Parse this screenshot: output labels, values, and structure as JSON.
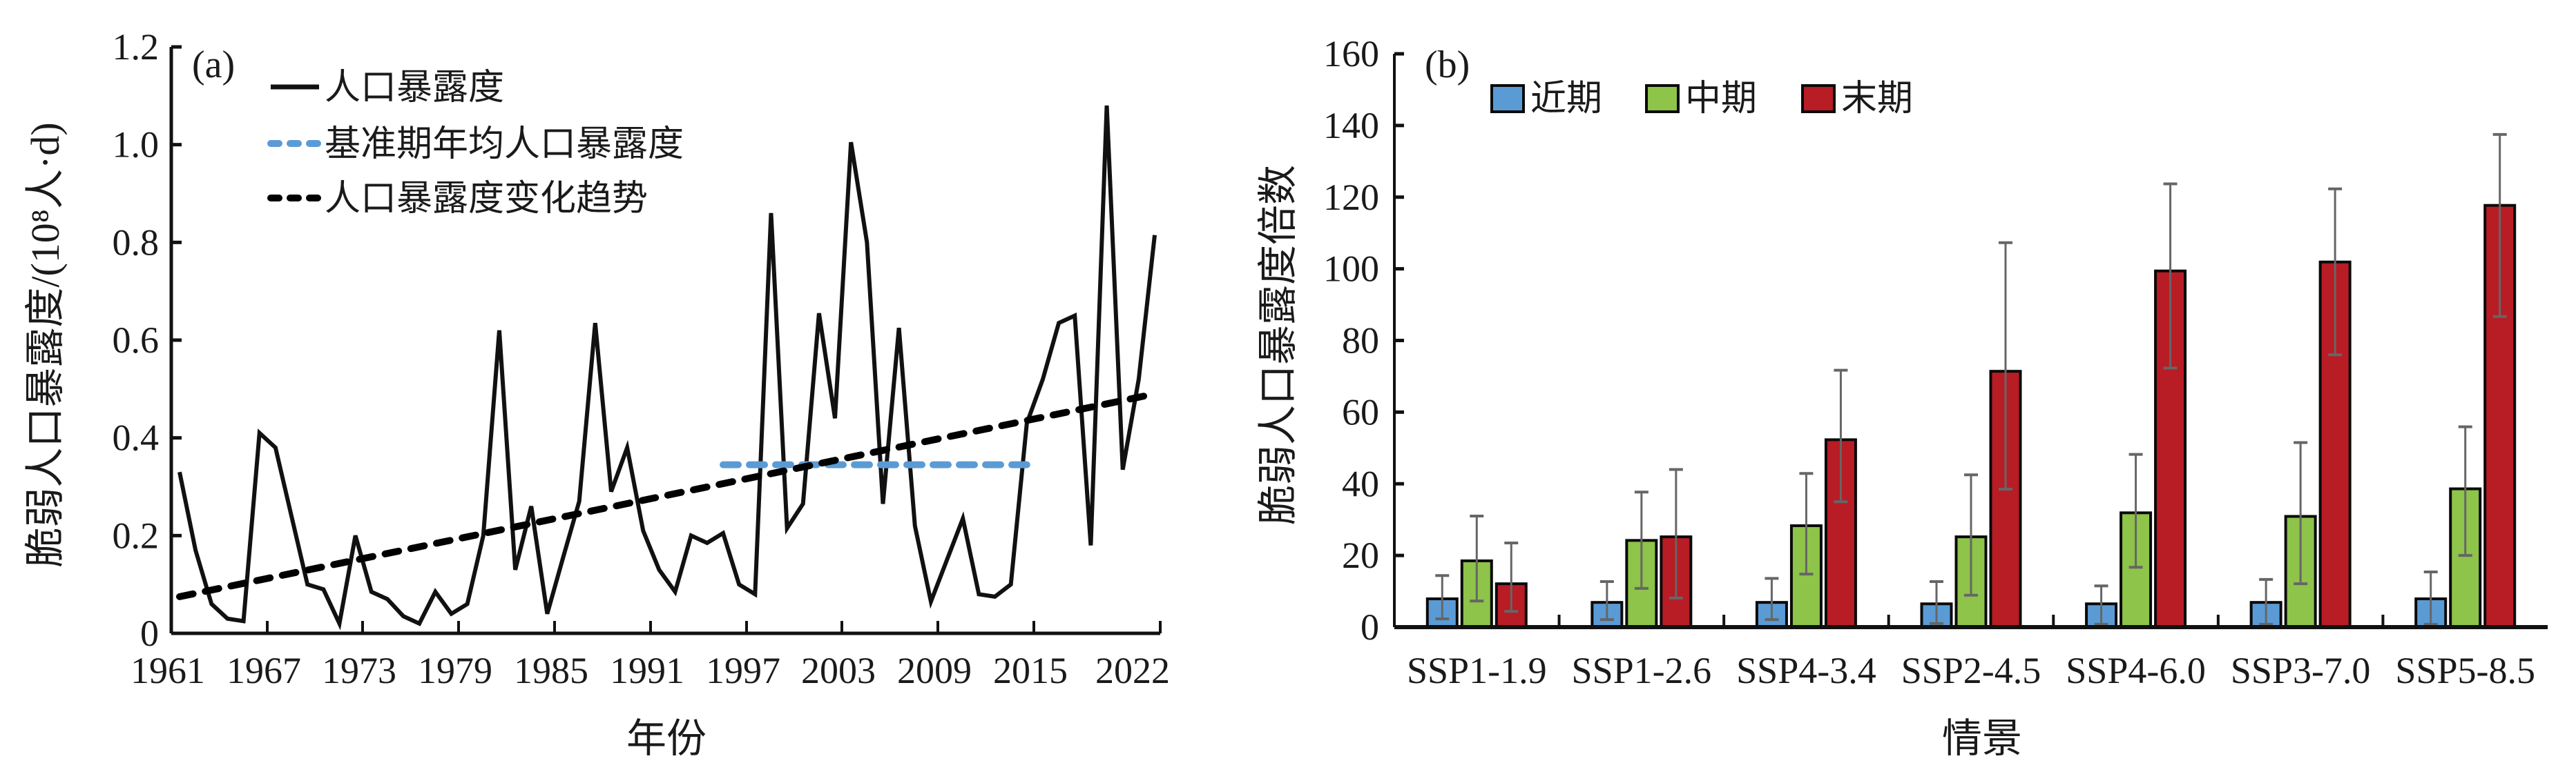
{
  "chart_data": [
    {
      "panel": "(a)",
      "type": "line",
      "title": "",
      "xlabel": "年份",
      "ylabel": "脆弱人口暴露度/(10⁸人·d)",
      "xlim": [
        1961,
        2022
      ],
      "ylim": [
        0,
        1.2
      ],
      "x_ticks": [
        "1961",
        "1967",
        "1973",
        "1979",
        "1985",
        "1991",
        "1997",
        "2003",
        "2009",
        "2015",
        "2022"
      ],
      "y_ticks": [
        "0",
        "0.2",
        "0.4",
        "0.6",
        "0.8",
        "1.0",
        "1.2"
      ],
      "legend_position": "top-left",
      "grid": false,
      "series": [
        {
          "name": "人口暴露度",
          "style": "solid",
          "color": "#111111",
          "x": [
            1961,
            1962,
            1963,
            1964,
            1965,
            1966,
            1967,
            1968,
            1969,
            1970,
            1971,
            1972,
            1973,
            1974,
            1975,
            1976,
            1977,
            1978,
            1979,
            1980,
            1981,
            1982,
            1983,
            1984,
            1985,
            1986,
            1987,
            1988,
            1989,
            1990,
            1991,
            1992,
            1993,
            1994,
            1995,
            1996,
            1997,
            1998,
            1999,
            2000,
            2001,
            2002,
            2003,
            2004,
            2005,
            2006,
            2007,
            2008,
            2009,
            2010,
            2011,
            2012,
            2013,
            2014,
            2015,
            2016,
            2017,
            2018,
            2019,
            2020,
            2021,
            2022
          ],
          "values": [
            0.33,
            0.17,
            0.06,
            0.03,
            0.025,
            0.41,
            0.38,
            0.24,
            0.1,
            0.09,
            0.02,
            0.2,
            0.085,
            0.07,
            0.035,
            0.02,
            0.085,
            0.04,
            0.06,
            0.2,
            0.62,
            0.13,
            0.26,
            0.04,
            0.156,
            0.27,
            0.635,
            0.29,
            0.38,
            0.21,
            0.13,
            0.085,
            0.2,
            0.185,
            0.205,
            0.1,
            0.08,
            0.86,
            0.215,
            0.265,
            0.655,
            0.44,
            1.005,
            0.8,
            0.265,
            0.625,
            0.22,
            0.065,
            0.15,
            0.235,
            0.08,
            0.075,
            0.1,
            0.43,
            0.52,
            0.635,
            0.65,
            0.18,
            1.08,
            0.335,
            0.52,
            0.815
          ]
        },
        {
          "name": "基准期年均人口暴露度",
          "style": "dashed",
          "color": "#5b9bd5",
          "x": [
            1995,
            2014
          ],
          "values": [
            0.345,
            0.345
          ]
        },
        {
          "name": "人口暴露度变化趋势",
          "style": "dashed",
          "color": "#000000",
          "x": [
            1961,
            2022
          ],
          "values": [
            0.075,
            0.49
          ]
        }
      ]
    },
    {
      "panel": "(b)",
      "type": "bar",
      "title": "",
      "xlabel": "情景",
      "ylabel": "脆弱人口暴露度倍数",
      "ylim": [
        0,
        160
      ],
      "y_ticks": [
        "0",
        "20",
        "40",
        "60",
        "80",
        "100",
        "120",
        "140",
        "160"
      ],
      "legend_position": "top-left",
      "grid": false,
      "categories": [
        "SSP1-1.9",
        "SSP1-2.6",
        "SSP4-3.4",
        "SSP2-4.5",
        "SSP4-6.0",
        "SSP3-7.0",
        "SSP5-8.5"
      ],
      "series": [
        {
          "name": "近期",
          "color": "#5b9bd5",
          "values": [
            7.9,
            6.9,
            6.9,
            6.5,
            6.5,
            6.9,
            7.9
          ],
          "error_low": [
            2.3,
            2.1,
            2.1,
            1.0,
            0.8,
            0.8,
            0.8
          ],
          "error_high": [
            14.4,
            12.7,
            13.6,
            12.7,
            11.5,
            13.3,
            15.4
          ]
        },
        {
          "name": "中期",
          "color": "#8dc449",
          "values": [
            18.5,
            24.2,
            28.3,
            25.2,
            31.9,
            30.9,
            38.6
          ],
          "error_low": [
            7.3,
            10.8,
            14.8,
            8.9,
            16.7,
            12.1,
            20.0
          ],
          "error_high": [
            31.0,
            37.7,
            42.9,
            42.5,
            48.2,
            51.5,
            55.9
          ]
        },
        {
          "name": "末期",
          "color": "#b81c25",
          "values": [
            12.1,
            25.2,
            52.3,
            71.4,
            99.4,
            101.9,
            117.7
          ],
          "error_low": [
            4.4,
            8.1,
            35.0,
            38.5,
            72.3,
            76.0,
            86.7
          ],
          "error_high": [
            23.5,
            44.0,
            71.7,
            107.3,
            123.7,
            122.3,
            137.5
          ]
        }
      ]
    }
  ]
}
